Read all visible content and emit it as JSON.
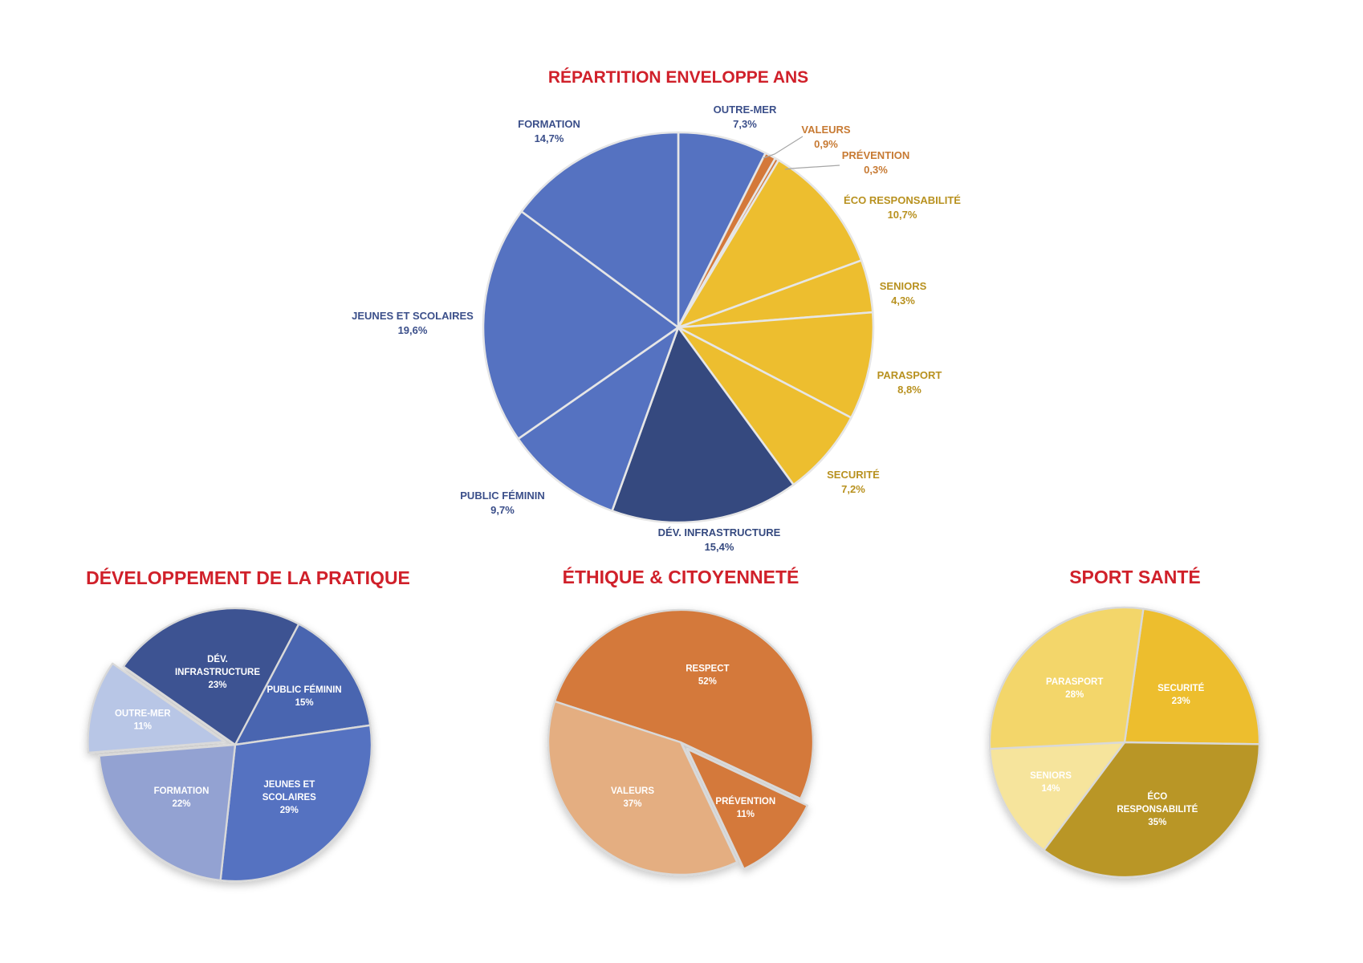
{
  "chart_data": [
    {
      "type": "pie",
      "title": "RÉPARTITION ENVELOPPE ANS",
      "slices": [
        {
          "label": "OUTRE-MER",
          "value": "7,3%",
          "pct": 7.3,
          "color": "#5572c1",
          "text_color": "#3b4f8a"
        },
        {
          "label": "VALEURS",
          "value": "0,9%",
          "pct": 0.9,
          "color": "#d4793a",
          "text_color": "#c77a33"
        },
        {
          "label": "PRÉVENTION",
          "value": "0,3%",
          "pct": 0.3,
          "color": "#d4793a",
          "text_color": "#c77a33"
        },
        {
          "label": "ÉCO RESPONSABILITÉ",
          "value": "10,7%",
          "pct": 10.7,
          "color": "#edbe2f",
          "text_color": "#b8911f"
        },
        {
          "label": "SENIORS",
          "value": "4,3%",
          "pct": 4.3,
          "color": "#edbe2f",
          "text_color": "#b8911f"
        },
        {
          "label": "PARASPORT",
          "value": "8,8%",
          "pct": 8.8,
          "color": "#edbe2f",
          "text_color": "#b8911f"
        },
        {
          "label": "SECURITÉ",
          "value": "7,2%",
          "pct": 7.2,
          "color": "#edbe2f",
          "text_color": "#b8911f"
        },
        {
          "label": "DÉV. INFRASTRUCTURE",
          "value": "15,4%",
          "pct": 15.4,
          "color": "#35497f",
          "text_color": "#35497f"
        },
        {
          "label": "PUBLIC FÉMININ",
          "value": "9,7%",
          "pct": 9.7,
          "color": "#5572c1",
          "text_color": "#3b4f8a"
        },
        {
          "label": "JEUNES ET SCOLAIRES",
          "value": "19,6%",
          "pct": 19.6,
          "color": "#5572c1",
          "text_color": "#3b4f8a"
        },
        {
          "label": "FORMATION",
          "value": "14,7%",
          "pct": 14.7,
          "color": "#5572c1",
          "text_color": "#3b4f8a"
        }
      ]
    },
    {
      "type": "pie",
      "title": "DÉVELOPPEMENT DE LA PRATIQUE",
      "slices": [
        {
          "label": "DÉV. INFRASTRUCTURE",
          "value": "23%",
          "pct": 23,
          "color": "#3c5292"
        },
        {
          "label": "PUBLIC FÉMININ",
          "value": "15%",
          "pct": 15,
          "color": "#4a65b0"
        },
        {
          "label": "JEUNES ET SCOLAIRES",
          "value": "29%",
          "pct": 29,
          "color": "#5572c1"
        },
        {
          "label": "FORMATION",
          "value": "22%",
          "pct": 22,
          "color": "#93a2d2"
        },
        {
          "label": "OUTRE-MER",
          "value": "11%",
          "pct": 11,
          "color": "#b8c6e6"
        }
      ]
    },
    {
      "type": "pie",
      "title": "ÉTHIQUE & CITOYENNETÉ",
      "slices": [
        {
          "label": "RESPECT",
          "value": "52%",
          "pct": 52,
          "color": "#d4793a"
        },
        {
          "label": "PRÉVENTION",
          "value": "11%",
          "pct": 11,
          "color": "#d4793a"
        },
        {
          "label": "VALEURS",
          "value": "37%",
          "pct": 37,
          "color": "#e4ae81"
        }
      ]
    },
    {
      "type": "pie",
      "title": "SPORT SANTÉ",
      "slices": [
        {
          "label": "SECURITÉ",
          "value": "23%",
          "pct": 23,
          "color": "#edbe2f"
        },
        {
          "label": "ÉCO RESPONSABILITÉ",
          "value": "35%",
          "pct": 35,
          "color": "#b99625"
        },
        {
          "label": "SENIORS",
          "value": "14%",
          "pct": 14,
          "color": "#f6e49c"
        },
        {
          "label": "PARASPORT",
          "value": "28%",
          "pct": 28,
          "color": "#f3d66b"
        }
      ]
    }
  ]
}
